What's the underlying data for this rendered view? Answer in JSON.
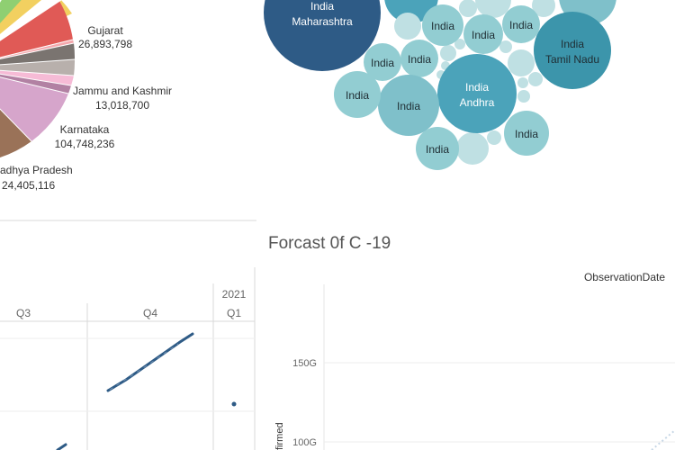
{
  "pie_chart": {
    "type": "pie",
    "labels": [
      {
        "state": "Gujarat",
        "value": "26,893,798"
      },
      {
        "state": "Jammu and Kashmir",
        "value": "13,018,700"
      },
      {
        "state": "Karnataka",
        "value": "104,748,236"
      },
      {
        "state": "adhya Pradesh",
        "value": "24,405,116"
      }
    ]
  },
  "bubble_chart": {
    "type": "bubble",
    "bubbles": [
      {
        "country": "India",
        "state": "Maharashtra",
        "color": "#2e5b86"
      },
      {
        "country": "India",
        "state": "Tamil Nadu",
        "color": "#3c95ab"
      },
      {
        "country": "India",
        "state": "Andhra",
        "color": "#4ba3ba"
      },
      {
        "country": "India",
        "state": "",
        "color": "#92cdd2"
      },
      {
        "country": "India",
        "state": "",
        "color": "#92cdd2"
      },
      {
        "country": "India",
        "state": "",
        "color": "#92cdd2"
      },
      {
        "country": "India",
        "state": "",
        "color": "#92cdd2"
      },
      {
        "country": "India",
        "state": "",
        "color": "#92cdd2"
      },
      {
        "country": "India",
        "state": "",
        "color": "#7fc0ca"
      },
      {
        "country": "India",
        "state": "",
        "color": "#92cdd2"
      },
      {
        "country": "India",
        "state": "",
        "color": "#92cdd2"
      },
      {
        "country": "India",
        "state": "",
        "color": "#92cdd2"
      }
    ]
  },
  "line_chart": {
    "type": "line",
    "year_label": "2021",
    "quarters": [
      "Q3",
      "Q4",
      "Q1"
    ],
    "series_color": "#2e5b86"
  },
  "forecast_chart": {
    "title": "Forcast 0f C -19",
    "header_label": "ObservationDate",
    "y_ticks": [
      "150G",
      "100G"
    ],
    "y_axis_label": "firmed"
  },
  "chart_data": [
    {
      "type": "pie",
      "categories": [
        "Gujarat",
        "Jammu and Kashmir",
        "Karnataka",
        "adhya Pradesh"
      ],
      "values": [
        26893798,
        13018700,
        104748236,
        24405116
      ]
    },
    {
      "type": "line",
      "x": [
        "Q3",
        "Q4",
        "Q1"
      ],
      "year": "2021"
    },
    {
      "type": "line",
      "title": "Forcast 0f C -19",
      "header": "ObservationDate",
      "ylabel": "firmed",
      "y_ticks": [
        "150G",
        "100G"
      ]
    }
  ]
}
